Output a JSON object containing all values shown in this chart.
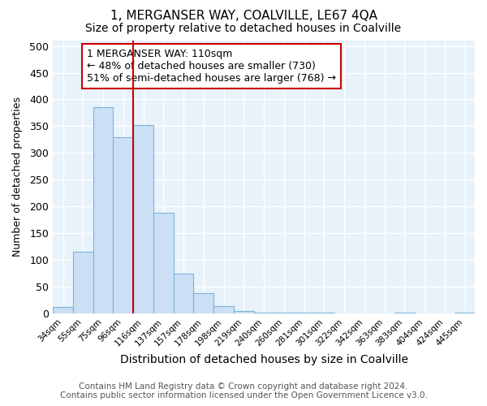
{
  "title1": "1, MERGANSER WAY, COALVILLE, LE67 4QA",
  "title2": "Size of property relative to detached houses in Coalville",
  "xlabel": "Distribution of detached houses by size in Coalville",
  "ylabel": "Number of detached properties",
  "footer1": "Contains HM Land Registry data © Crown copyright and database right 2024.",
  "footer2": "Contains public sector information licensed under the Open Government Licence v3.0.",
  "bar_labels": [
    "34sqm",
    "55sqm",
    "75sqm",
    "96sqm",
    "116sqm",
    "137sqm",
    "157sqm",
    "178sqm",
    "198sqm",
    "219sqm",
    "240sqm",
    "260sqm",
    "281sqm",
    "301sqm",
    "322sqm",
    "342sqm",
    "363sqm",
    "383sqm",
    "404sqm",
    "424sqm",
    "445sqm"
  ],
  "bar_values": [
    12,
    115,
    385,
    330,
    352,
    188,
    75,
    38,
    13,
    5,
    2,
    2,
    2,
    2,
    0,
    0,
    0,
    2,
    0,
    0,
    2
  ],
  "bar_color": "#cce0f5",
  "bar_edge_color": "#7ab3d9",
  "vline_x_idx": 4,
  "vline_color": "#cc0000",
  "annotation_text": "1 MERGANSER WAY: 110sqm\n← 48% of detached houses are smaller (730)\n51% of semi-detached houses are larger (768) →",
  "annotation_box_color": "#ffffff",
  "annotation_box_edge_color": "#cc0000",
  "ylim": [
    0,
    510
  ],
  "yticks": [
    0,
    50,
    100,
    150,
    200,
    250,
    300,
    350,
    400,
    450,
    500
  ],
  "background_color": "#e8f2fb",
  "grid_color": "#ffffff",
  "title1_fontsize": 11,
  "title2_fontsize": 10,
  "xlabel_fontsize": 10,
  "ylabel_fontsize": 9,
  "footer_fontsize": 7.5,
  "annotation_fontsize": 9
}
